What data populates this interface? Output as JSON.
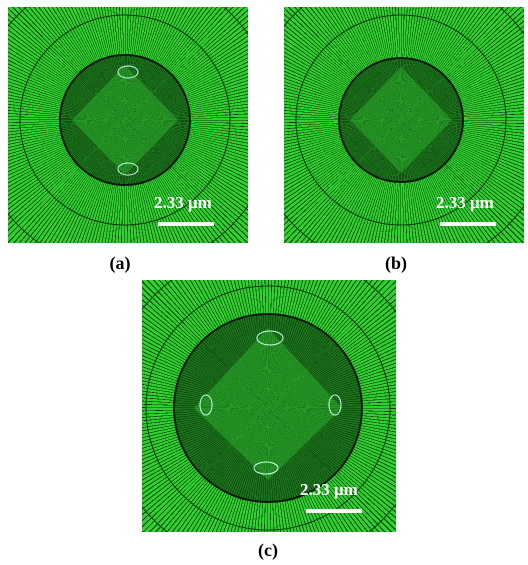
{
  "panels": [
    {
      "scale_label": "2.33 μm",
      "caption": "(a)"
    },
    {
      "scale_label": "2.33 μm",
      "caption": "(b)"
    },
    {
      "scale_label": "2.33 μm",
      "caption": "(c)"
    }
  ]
}
